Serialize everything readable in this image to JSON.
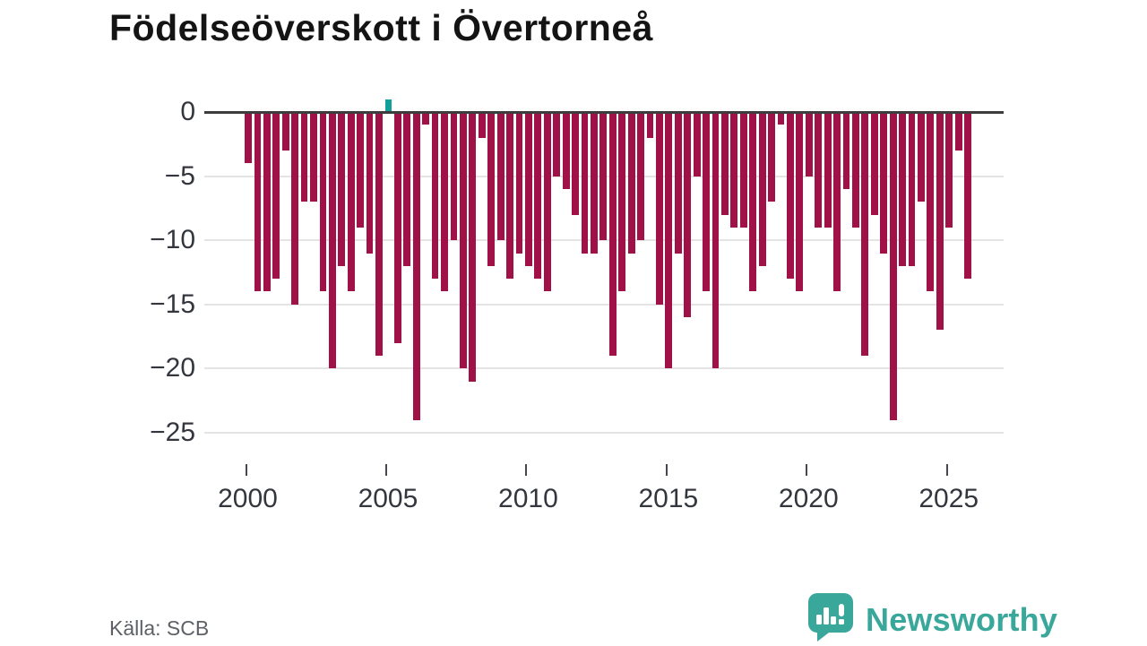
{
  "title": "Födelseöverskott i Övertorneå",
  "source_label": "Källa: SCB",
  "brand": {
    "name": "Newsworthy"
  },
  "colors": {
    "negative_bar": "#a01147",
    "positive_bar": "#14a09a",
    "zero_line": "#3d3d3d",
    "grid_line": "#e4e4e4",
    "axis_text": "#33373d",
    "brand_teal": "#3aa79b",
    "muted_text": "#5d6166"
  },
  "chart_data": {
    "type": "bar",
    "title": "Födelseöverskott i Övertorneå",
    "xlabel": "",
    "ylabel": "",
    "ylim": [
      -25,
      2
    ],
    "grid": true,
    "y_ticks": [
      0,
      -5,
      -10,
      -15,
      -20,
      -25
    ],
    "y_tick_labels": [
      "0",
      "−5",
      "−10",
      "−15",
      "−20",
      "−25"
    ],
    "x_tick_years": [
      2000,
      2005,
      2010,
      2015,
      2020,
      2025
    ],
    "x_tick_labels": [
      "2000",
      "2005",
      "2010",
      "2015",
      "2020",
      "2025"
    ],
    "frequency": "tertial (3 per year)",
    "start_year": 2000,
    "values": [
      -4,
      -14,
      -14,
      -13,
      -3,
      -15,
      -7,
      -7,
      -14,
      -20,
      -12,
      -14,
      -9,
      -11,
      -19,
      1,
      -18,
      -12,
      -24,
      -1,
      -13,
      -14,
      -10,
      -20,
      -21,
      -2,
      -12,
      -10,
      -13,
      -11,
      -12,
      -13,
      -14,
      -5,
      -6,
      -8,
      -11,
      -11,
      -10,
      -19,
      -14,
      -11,
      -10,
      -2,
      -15,
      -20,
      -11,
      -16,
      -5,
      -14,
      -20,
      -8,
      -9,
      -9,
      -14,
      -12,
      -7,
      -1,
      -13,
      -14,
      -5,
      -9,
      -9,
      -14,
      -6,
      -9,
      -19,
      -8,
      -11,
      -24,
      -12,
      -12,
      -7,
      -14,
      -17,
      -9,
      -3,
      -13
    ]
  }
}
